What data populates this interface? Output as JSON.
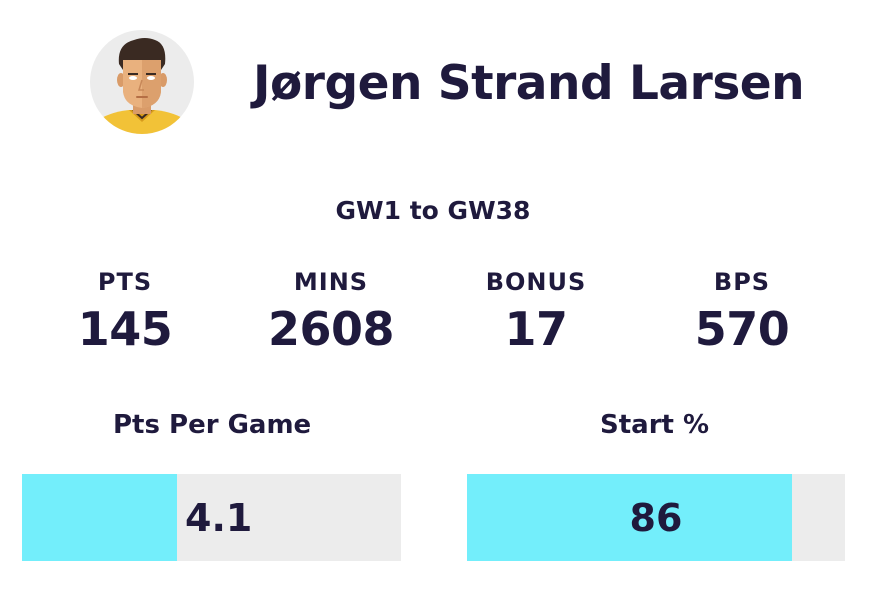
{
  "player": {
    "name": "Jørgen Strand Larsen"
  },
  "avatar": {
    "icon": "player-avatar-icon",
    "shirt_color": "#f2c237",
    "skin_color": "#e9b17e",
    "hair_color": "#3a2a22"
  },
  "range": "GW1 to GW38",
  "stats": [
    {
      "label": "PTS",
      "value": "145"
    },
    {
      "label": "MINS",
      "value": "2608"
    },
    {
      "label": "BONUS",
      "value": "17"
    },
    {
      "label": "BPS",
      "value": "570"
    }
  ],
  "metrics": {
    "pts_per_game": {
      "title": "Pts Per Game",
      "value": "4.1",
      "fill_fraction": 0.41
    },
    "start_pct": {
      "title": "Start %",
      "value": "86",
      "fill_fraction": 0.86
    }
  },
  "colors": {
    "text": "#1f1a3d",
    "bar_fill": "#73eefb",
    "bar_track": "#ececec"
  }
}
